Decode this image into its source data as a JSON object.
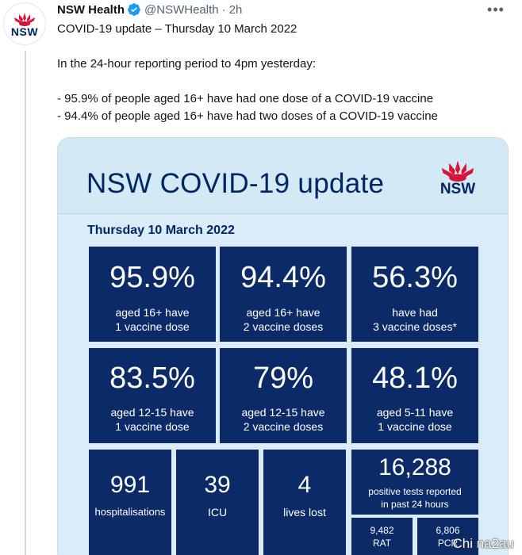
{
  "tweet": {
    "author_name": "NSW Health",
    "handle": "@NSWHealth",
    "separator": "·",
    "time": "2h",
    "more": "•••",
    "avatar_label": "NSW",
    "lines": [
      "COVID-19 update – Thursday 10 March 2022",
      "In the 24-hour reporting period to 4pm yesterday:",
      "- 95.9% of people aged 16+ have had one dose of a COVID-19 vaccine",
      "- 94.4% of people aged 16+ have had two doses of a COVID-19 vaccine"
    ]
  },
  "card": {
    "title": "NSW COVID-19 update",
    "logo_label": "NSW",
    "date": "Thursday 10 March 2022",
    "vaccination_tiles": [
      {
        "value": "95.9%",
        "line1": "aged 16+ have",
        "line2": "1 vaccine dose"
      },
      {
        "value": "94.4%",
        "line1": "aged 16+ have",
        "line2": "2 vaccine doses"
      },
      {
        "value": "56.3%",
        "line1": "have had",
        "line2": "3 vaccine doses*"
      },
      {
        "value": "83.5%",
        "line1": "aged 12-15 have",
        "line2": "1 vaccine dose"
      },
      {
        "value": "79%",
        "line1": "aged 12-15 have",
        "line2": "2 vaccine doses"
      },
      {
        "value": "48.1%",
        "line1": "aged 5-11 have",
        "line2": "1 vaccine dose"
      }
    ],
    "stats": [
      {
        "value": "991",
        "label": "hospitalisations"
      },
      {
        "value": "39",
        "label": "ICU"
      },
      {
        "value": "4",
        "label": "lives lost"
      }
    ],
    "tests": {
      "value": "16,288",
      "line1": "positive tests reported",
      "line2": "in past 24 hours",
      "rat_value": "9,482",
      "rat_label": "RAT",
      "pcr_value": "6,806",
      "pcr_label": "PCR"
    }
  },
  "colors": {
    "tile_bg": "#0d2a68",
    "card_bg": "#d9ecf7",
    "nsw_blue": "#002664",
    "waratah_red": "#d7153a",
    "verified_blue": "#1d9bf0"
  },
  "watermark": "Chi na2au"
}
